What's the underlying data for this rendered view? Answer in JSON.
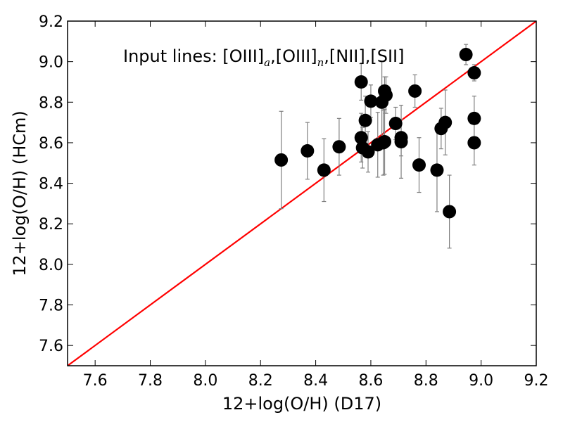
{
  "chart_data": {
    "type": "scatter",
    "title": "",
    "xlabel": "12+log(O/H) (D17)",
    "ylabel": "12+log(O/H) (HCm)",
    "xlim": [
      7.5,
      9.2
    ],
    "ylim": [
      7.5,
      9.2
    ],
    "xticks": [
      "7.6",
      "7.8",
      "8.0",
      "8.2",
      "8.4",
      "8.6",
      "8.8",
      "9.0",
      "9.2"
    ],
    "yticks": [
      "7.6",
      "7.8",
      "8.0",
      "8.2",
      "8.4",
      "8.6",
      "8.8",
      "9.0",
      "9.2"
    ],
    "grid": false,
    "annotation": {
      "prefix": "Input lines: [OIII]",
      "sub_a": "a",
      "mid": ",[OIII]",
      "sub_n": "n",
      "suffix": ",[NII],[SII]"
    },
    "reference_line": {
      "type": "y=x",
      "color": "#ff0000"
    },
    "point_color": "#000000",
    "errorbar_color": "#808080",
    "points": [
      {
        "x": 8.275,
        "y": 8.515,
        "yerr": 0.24
      },
      {
        "x": 8.37,
        "y": 8.56,
        "yerr": 0.14
      },
      {
        "x": 8.43,
        "y": 8.465,
        "yerr": 0.155
      },
      {
        "x": 8.485,
        "y": 8.58,
        "yerr": 0.14
      },
      {
        "x": 8.565,
        "y": 8.9,
        "yerr": 0.09
      },
      {
        "x": 8.565,
        "y": 8.625,
        "yerr": 0.12
      },
      {
        "x": 8.57,
        "y": 8.575,
        "yerr": 0.1
      },
      {
        "x": 8.58,
        "y": 8.71,
        "yerr": 0.12
      },
      {
        "x": 8.59,
        "y": 8.555,
        "yerr": 0.1
      },
      {
        "x": 8.6,
        "y": 8.805,
        "yerr": 0.08
      },
      {
        "x": 8.625,
        "y": 8.59,
        "yerr": 0.16
      },
      {
        "x": 8.64,
        "y": 8.8,
        "yerr": 0.2
      },
      {
        "x": 8.645,
        "y": 8.6,
        "yerr": 0.16
      },
      {
        "x": 8.65,
        "y": 8.605,
        "yerr": 0.16
      },
      {
        "x": 8.65,
        "y": 8.855,
        "yerr": 0.07
      },
      {
        "x": 8.655,
        "y": 8.835,
        "yerr": 0.09
      },
      {
        "x": 8.69,
        "y": 8.695,
        "yerr": 0.08
      },
      {
        "x": 8.71,
        "y": 8.625,
        "yerr": 0.09
      },
      {
        "x": 8.71,
        "y": 8.605,
        "yerr": 0.18
      },
      {
        "x": 8.76,
        "y": 8.855,
        "yerr": 0.08
      },
      {
        "x": 8.775,
        "y": 8.49,
        "yerr": 0.135
      },
      {
        "x": 8.84,
        "y": 8.465,
        "yerr": 0.205
      },
      {
        "x": 8.855,
        "y": 8.67,
        "yerr": 0.1
      },
      {
        "x": 8.87,
        "y": 8.7,
        "yerr": 0.16
      },
      {
        "x": 8.885,
        "y": 8.26,
        "yerr": 0.18
      },
      {
        "x": 8.945,
        "y": 9.035,
        "yerr": 0.05
      },
      {
        "x": 8.975,
        "y": 8.945,
        "yerr": 0.04
      },
      {
        "x": 8.975,
        "y": 8.72,
        "yerr": 0.11
      },
      {
        "x": 8.975,
        "y": 8.6,
        "yerr": 0.11
      }
    ]
  }
}
